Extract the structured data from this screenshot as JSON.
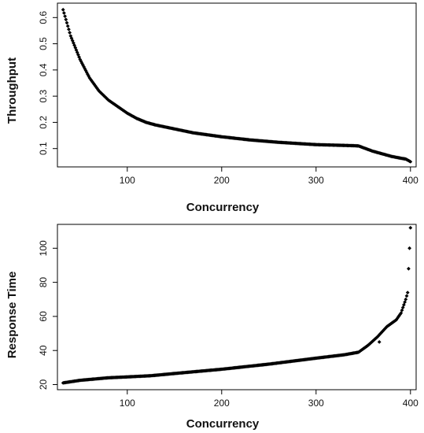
{
  "chart_data": [
    {
      "type": "scatter",
      "title": "",
      "xlabel": "Concurrency",
      "ylabel": "Throughput",
      "xlim": [
        26,
        406
      ],
      "ylim": [
        0.03,
        0.655
      ],
      "xticks": [
        "100",
        "200",
        "300",
        "400"
      ],
      "xtick_values": [
        100,
        200,
        300,
        400
      ],
      "yticks": [
        "0.1",
        "0.2",
        "0.3",
        "0.4",
        "0.5",
        "0.6"
      ],
      "ytick_values": [
        0.1,
        0.2,
        0.3,
        0.4,
        0.5,
        0.6
      ],
      "grid": false,
      "marker_color": "#000000",
      "series": [
        {
          "x": [
            32,
            40,
            50,
            60,
            70,
            80,
            90,
            100,
            110,
            120,
            130,
            150,
            170,
            200,
            230,
            260,
            300,
            320,
            340,
            345,
            360,
            380,
            390,
            395,
            400
          ],
          "values": [
            0.63,
            0.53,
            0.44,
            0.37,
            0.32,
            0.285,
            0.26,
            0.235,
            0.215,
            0.2,
            0.19,
            0.175,
            0.16,
            0.145,
            0.133,
            0.124,
            0.115,
            0.113,
            0.111,
            0.11,
            0.09,
            0.07,
            0.063,
            0.06,
            0.05
          ]
        }
      ]
    },
    {
      "type": "scatter",
      "title": "",
      "xlabel": "Concurrency",
      "ylabel": "Response Time",
      "xlim": [
        26,
        406
      ],
      "ylim": [
        17,
        114
      ],
      "xticks": [
        "100",
        "200",
        "300",
        "400"
      ],
      "xtick_values": [
        100,
        200,
        300,
        400
      ],
      "yticks": [
        "20",
        "40",
        "60",
        "80",
        "100"
      ],
      "ytick_values": [
        20,
        40,
        60,
        80,
        100
      ],
      "grid": false,
      "marker_color": "#000000",
      "series": [
        {
          "x": [
            32,
            50,
            80,
            100,
            125,
            150,
            200,
            250,
            300,
            330,
            345,
            355,
            365,
            375,
            385,
            390,
            395,
            396,
            397,
            398,
            399,
            400
          ],
          "values": [
            21,
            22.5,
            24,
            24.5,
            25.2,
            26.5,
            29,
            32,
            35.5,
            37.5,
            39,
            43,
            48,
            54,
            58,
            62,
            70,
            72,
            74,
            88,
            100,
            112
          ]
        }
      ],
      "extra_points": {
        "x": [
          367
        ],
        "values": [
          45
        ]
      }
    }
  ]
}
